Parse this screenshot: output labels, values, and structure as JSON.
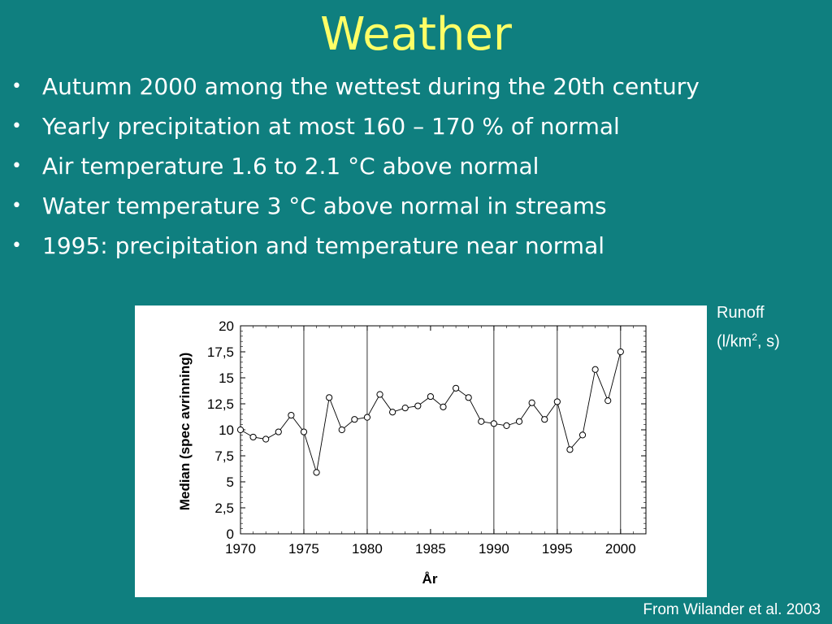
{
  "slide": {
    "title": "Weather",
    "bullet_glyph": "•",
    "bullets": [
      "Autumn 2000 among the wettest during the 20th century",
      "Yearly precipitation at most 160 – 170 % of normal",
      "Air temperature 1.6 to 2.1 °C above normal",
      "Water temperature 3 °C  above normal in streams",
      "1995: precipitation and temperature near normal"
    ],
    "runoff_line1": "Runoff",
    "runoff_line2_pre": "(l/km",
    "runoff_line2_sup": "2",
    "runoff_line2_post": ", s)",
    "citation": "From Wilander et al. 2003",
    "colors": {
      "background": "#0f7f7f",
      "title": "#ffff66",
      "text": "#ffffff"
    }
  },
  "chart_data": {
    "type": "line",
    "xlabel": "År",
    "ylabel": "Median (spec avrinning)",
    "xlim": [
      1970,
      2002
    ],
    "ylim": [
      0,
      20
    ],
    "x_ticks": [
      1970,
      1975,
      1980,
      1985,
      1990,
      1995,
      2000
    ],
    "y_ticks": [
      0,
      2.5,
      5,
      7.5,
      10,
      12.5,
      15,
      17.5,
      20
    ],
    "y_tick_labels": [
      "0",
      "2,5",
      "5",
      "7,5",
      "10",
      "12,5",
      "15",
      "17,5",
      "20"
    ],
    "vertical_gridlines": [
      1975,
      1980,
      1990,
      1995,
      2000
    ],
    "grid": false,
    "series": [
      {
        "x": [
          1970,
          1971,
          1972,
          1973,
          1974,
          1975,
          1976,
          1977,
          1978,
          1979,
          1980,
          1981,
          1982,
          1983,
          1984,
          1985,
          1986,
          1987,
          1988,
          1989,
          1990,
          1991,
          1992,
          1993,
          1994,
          1995,
          1996,
          1997,
          1998,
          1999,
          2000
        ],
        "y": [
          10.0,
          9.3,
          9.1,
          9.8,
          11.4,
          9.8,
          5.9,
          13.1,
          10.0,
          11.0,
          11.2,
          13.4,
          11.7,
          12.1,
          12.3,
          13.2,
          12.2,
          14.0,
          13.1,
          10.8,
          10.6,
          10.4,
          10.8,
          12.6,
          11.0,
          12.7,
          8.1,
          9.5,
          15.8,
          12.8,
          17.5
        ]
      }
    ]
  }
}
